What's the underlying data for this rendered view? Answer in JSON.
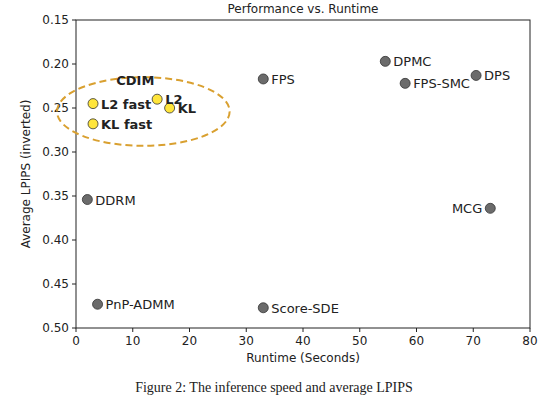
{
  "chart_data": {
    "type": "scatter",
    "title": "Performance vs. Runtime",
    "x_label": "Runtime (Seconds)",
    "y_label": "Average LPIPS (inverted)",
    "caption": "Figure 2: The inference speed and average LPIPS",
    "labels": [
      "DPMC",
      "FPS",
      "FPS-SMC",
      "DPS",
      "L2",
      "L2 fast",
      "KL",
      "KL fast",
      "DDRM",
      "MCG",
      "PnP-ADMM",
      "Score-SDE"
    ],
    "x": [
      54.5,
      33,
      58,
      70.5,
      14.3,
      3,
      16.5,
      3,
      2,
      73,
      3.8,
      33
    ],
    "values": [
      0.197,
      0.217,
      0.222,
      0.213,
      0.24,
      0.245,
      0.25,
      0.268,
      0.354,
      0.364,
      0.473,
      0.477
    ],
    "colors": [
      "#6b6b6b",
      "#6b6b6b",
      "#6b6b6b",
      "#6b6b6b",
      "#ffe53b",
      "#ffe53b",
      "#ffe53b",
      "#ffe53b",
      "#6b6b6b",
      "#6b6b6b",
      "#6b6b6b",
      "#6b6b6b"
    ],
    "annotations": [
      {
        "text": "CDIM",
        "color": "#d9a030",
        "members": [
          4,
          5,
          6,
          7
        ]
      }
    ],
    "xlim": [
      0,
      80
    ],
    "xticks": [
      0,
      10,
      20,
      30,
      40,
      50,
      60,
      70,
      80
    ],
    "ylim": [
      0.15,
      0.5
    ],
    "yticks": [
      0.15,
      {
        "value": 0.2,
        "label": "0.20"
      },
      0.25,
      {
        "value": 0.3,
        "label": "0.30"
      },
      0.35,
      {
        "value": 0.4,
        "label": "0.40"
      },
      0.45,
      {
        "value": 0.5,
        "label": "0.50"
      }
    ],
    "grid": false
  }
}
